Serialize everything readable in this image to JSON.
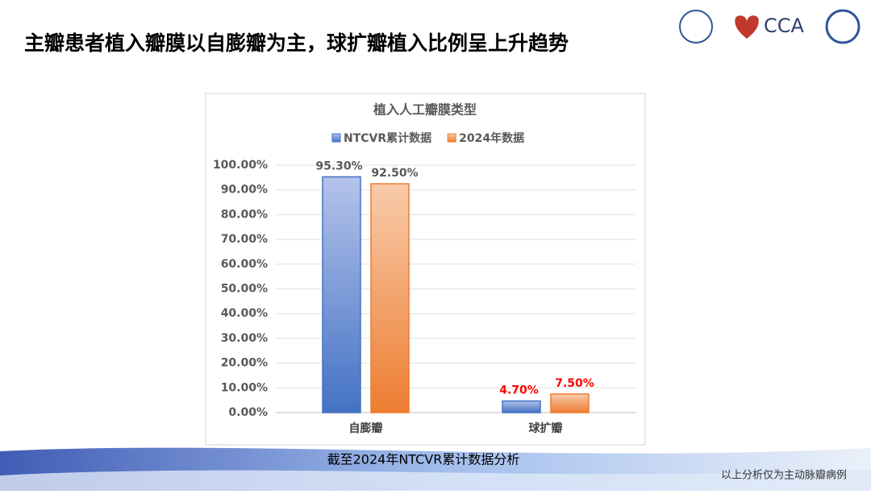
{
  "page": {
    "title": "主瓣患者植入瓣膜以自膨瓣为主，球扩瓣植入比例呈上升趋势",
    "logo_text": "CCA",
    "caption": "截至2024年NTCVR累计数据分析",
    "footnote": "以上分析仅为主动脉瓣病例"
  },
  "chart_data": {
    "type": "bar",
    "title": "植入人工瓣膜类型",
    "categories": [
      "自膨瓣",
      "球扩瓣"
    ],
    "series": [
      {
        "name": "NTCVR累计数据",
        "color": "#4472c4",
        "values": [
          95.3,
          4.7
        ],
        "value_labels": [
          "95.30%",
          "4.70%"
        ]
      },
      {
        "name": "2024年数据",
        "color": "#ed7d31",
        "values": [
          92.5,
          7.5
        ],
        "value_labels": [
          "92.50%",
          "7.50%"
        ]
      }
    ],
    "value_label_colors": [
      "#595959",
      "#ff0000"
    ],
    "ylim": [
      0,
      100
    ],
    "yticks": [
      {
        "value": 0,
        "label": "0.00%"
      },
      {
        "value": 10,
        "label": "10.00%"
      },
      {
        "value": 20,
        "label": "20.00%"
      },
      {
        "value": 30,
        "label": "30.00%"
      },
      {
        "value": 40,
        "label": "40.00%"
      },
      {
        "value": 50,
        "label": "50.00%"
      },
      {
        "value": 60,
        "label": "60.00%"
      },
      {
        "value": 70,
        "label": "70.00%"
      },
      {
        "value": 80,
        "label": "80.00%"
      },
      {
        "value": 90,
        "label": "90.00%"
      },
      {
        "value": 100,
        "label": "100.00%"
      }
    ],
    "grid": true,
    "legend": "top"
  }
}
